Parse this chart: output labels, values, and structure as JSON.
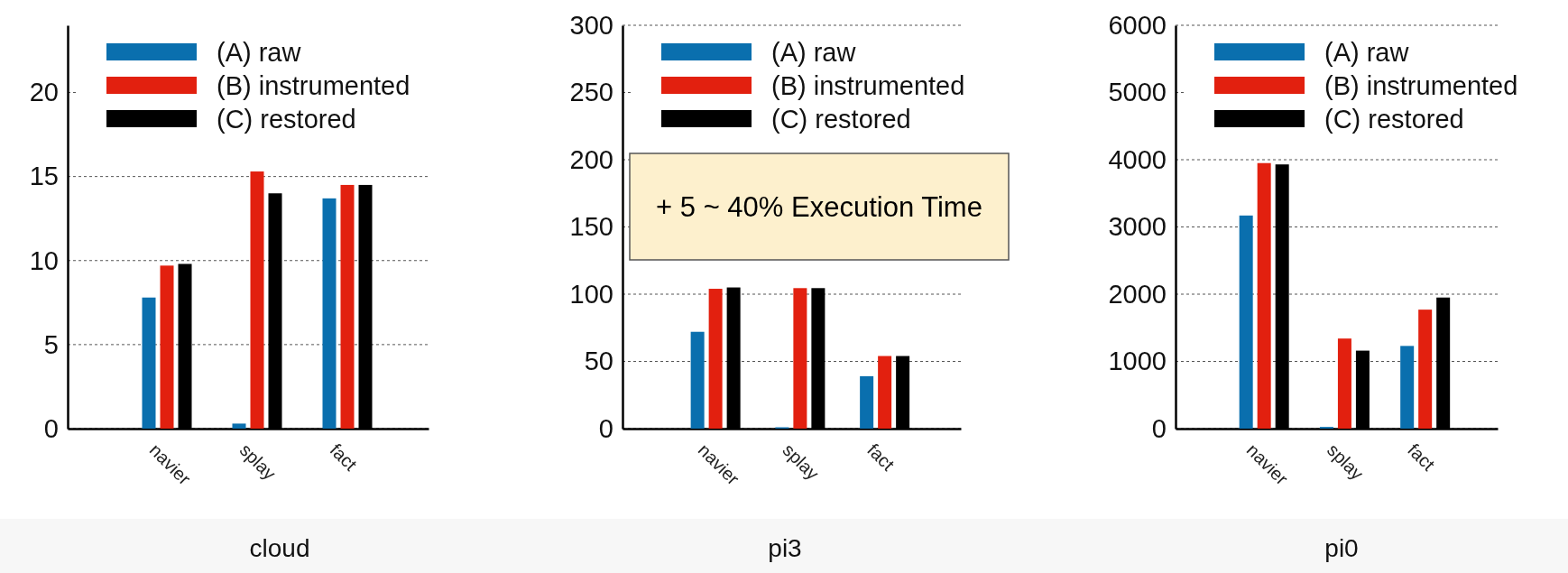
{
  "chart_data": [
    {
      "type": "bar",
      "xlabel": "cloud",
      "categories": [
        "navier",
        "splay",
        "fact"
      ],
      "ylim": [
        0,
        24
      ],
      "yticks": [
        0,
        5,
        10,
        15,
        20
      ],
      "grid": "y",
      "legend": "top left",
      "series": [
        {
          "name": "(A) raw",
          "color": "#0a6fae",
          "values": [
            7.8,
            0.3,
            13.7
          ]
        },
        {
          "name": "(B) instrumented",
          "color": "#e2200f",
          "values": [
            9.7,
            15.3,
            14.5
          ]
        },
        {
          "name": "(C) restored",
          "color": "#000000",
          "values": [
            9.8,
            14.0,
            14.5
          ]
        }
      ]
    },
    {
      "type": "bar",
      "xlabel": "pi3",
      "categories": [
        "navier",
        "splay",
        "fact"
      ],
      "ylim": [
        0,
        300
      ],
      "yticks": [
        0,
        50,
        100,
        150,
        200,
        250,
        300
      ],
      "grid": "y",
      "legend": "top",
      "annotations": [
        "+ 5 ~ 40% Execution Time"
      ],
      "series": [
        {
          "name": "(A) raw",
          "color": "#0a6fae",
          "values": [
            72,
            1,
            39
          ]
        },
        {
          "name": "(B) instrumented",
          "color": "#e2200f",
          "values": [
            104,
            104.5,
            54
          ]
        },
        {
          "name": "(C) restored",
          "color": "#000000",
          "values": [
            105,
            104.5,
            54
          ]
        }
      ]
    },
    {
      "type": "bar",
      "xlabel": "pi0",
      "categories": [
        "navier",
        "splay",
        "fact"
      ],
      "ylim": [
        0,
        6000
      ],
      "yticks": [
        0,
        1000,
        2000,
        3000,
        4000,
        5000,
        6000
      ],
      "grid": "y",
      "legend": "top",
      "series": [
        {
          "name": "(A) raw",
          "color": "#0a6fae",
          "values": [
            3170,
            25,
            1230
          ]
        },
        {
          "name": "(B) instrumented",
          "color": "#e2200f",
          "values": [
            3950,
            1340,
            1770
          ]
        },
        {
          "name": "(C) restored",
          "color": "#000000",
          "values": [
            3930,
            1160,
            1950
          ]
        }
      ]
    }
  ]
}
